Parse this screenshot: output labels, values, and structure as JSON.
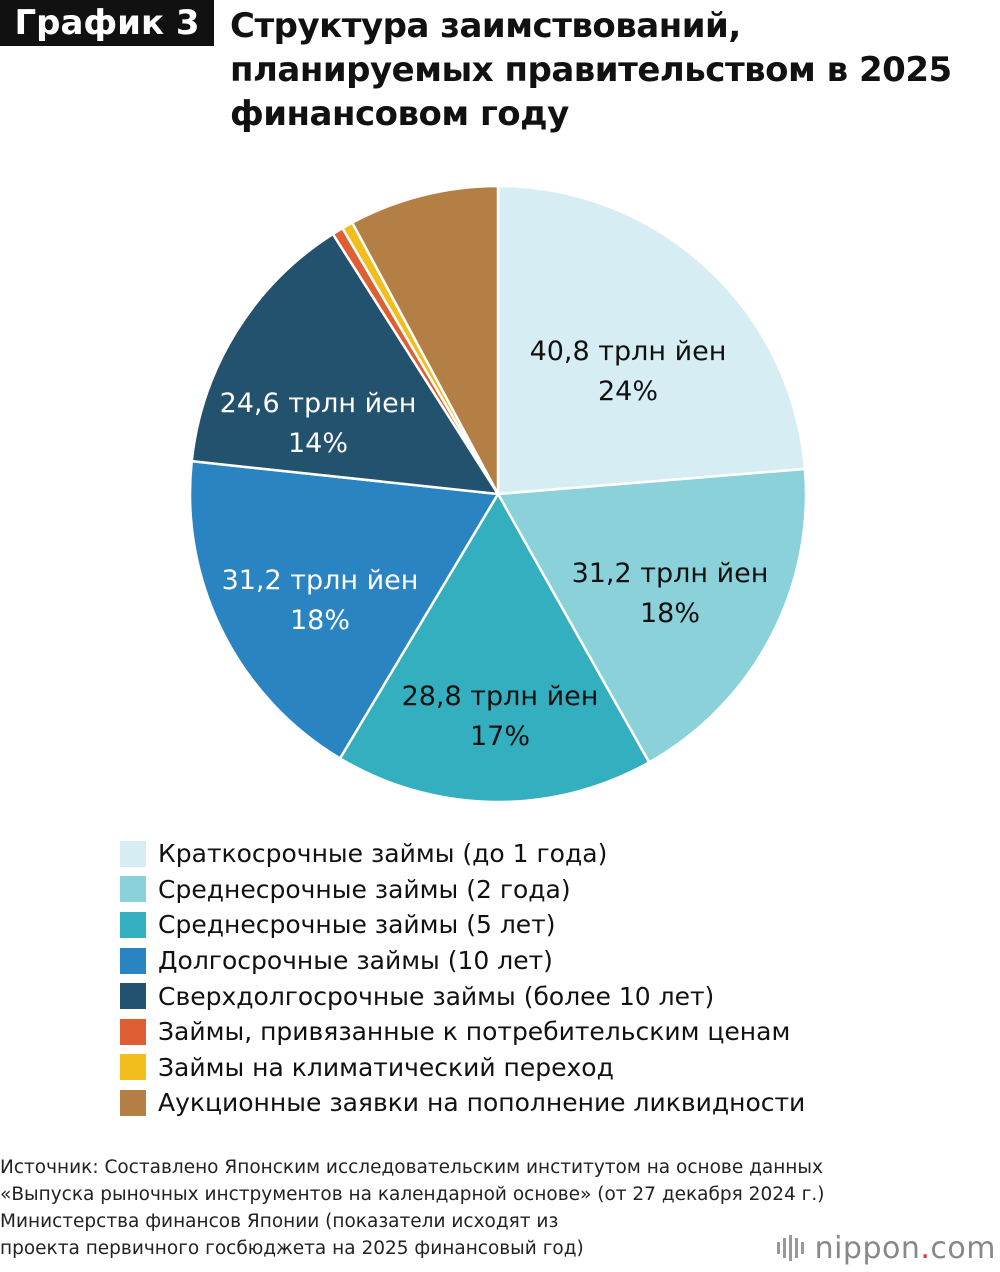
{
  "header": {
    "badge": "График 3",
    "title_lines": [
      "Структура заимствований,",
      "планируемых правительством в 2025",
      "финансовом году"
    ]
  },
  "chart_data": {
    "type": "pie",
    "slices": [
      {
        "name": "Краткосрочные займы (до 1 года)",
        "value": 40.8,
        "percent": 24,
        "value_label": "40,8 трлн йен",
        "percent_label": "24%",
        "color": "#d6eef3",
        "label_color": "#111111"
      },
      {
        "name": "Среднесрочные займы (2 года)",
        "value": 31.2,
        "percent": 18,
        "value_label": "31,2 трлн йен",
        "percent_label": "18%",
        "color": "#8ad1da",
        "label_color": "#111111"
      },
      {
        "name": "Среднесрочные займы (5 лет)",
        "value": 28.8,
        "percent": 17,
        "value_label": "28,8 трлн йен",
        "percent_label": "17%",
        "color": "#33afbf",
        "label_color": "#111111"
      },
      {
        "name": "Долгосрочные займы (10 лет)",
        "value": 31.2,
        "percent": 18,
        "value_label": "31,2 трлн йен",
        "percent_label": "18%",
        "color": "#2a84c2",
        "label_color": "#ffffff"
      },
      {
        "name": "Сверхдолгосрочные займы (более 10 лет)",
        "value": 24.6,
        "percent": 14,
        "value_label": "24,6 трлн йен",
        "percent_label": "14%",
        "color": "#23526f",
        "label_color": "#ffffff"
      },
      {
        "name": "Займы, привязанные к потребительским ценам",
        "value": 1.0,
        "color": "#de5f33"
      },
      {
        "name": "Займы на климатический переход",
        "value": 1.0,
        "color": "#f1be1d"
      },
      {
        "name": "Аукционные заявки на пополнение ликвидности",
        "value": 13.5,
        "color": "#b47f45"
      }
    ]
  },
  "source_lines": [
    "Источник: Составлено Японским исследовательским институтом на основе данных",
    "«Выпуска рыночных инструментов на календарной основе» (от 27 декабря 2024 г.)",
    "Министерства финансов Японии (показатели исходят из",
    "проекта первичного госбюджета на 2025 финансовый год)"
  ],
  "brand": {
    "name": "nippon",
    "dot": ".",
    "tld": "com"
  }
}
